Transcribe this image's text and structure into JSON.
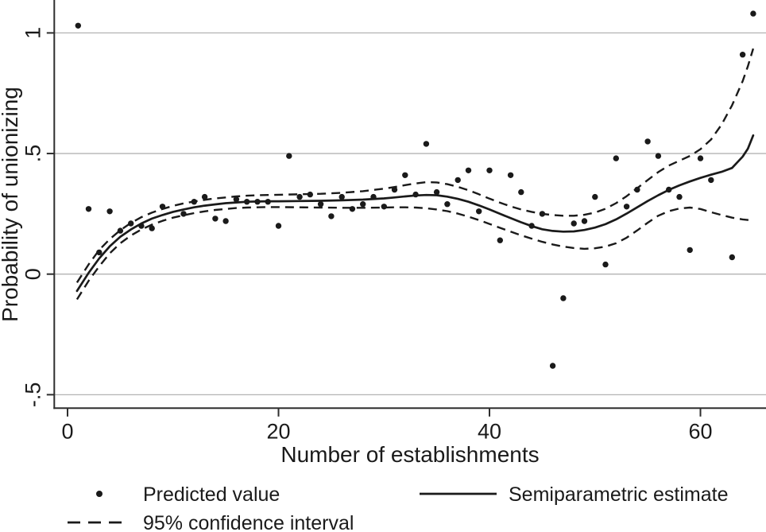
{
  "figure": {
    "background": "#ffffff",
    "text_color": "#1a1a1a",
    "grid_color": "#b3b3b3",
    "axis_color": "#2e2e2e",
    "series_color": "#1a1a1a"
  },
  "chart_data": {
    "type": "scatter",
    "title": "",
    "xlabel": "Number of establishments",
    "ylabel": "Probability of unionizing",
    "xlim": [
      -1.3,
      66.2
    ],
    "ylim": [
      -0.555,
      1.135
    ],
    "grid": "horizontal-only",
    "legend_position": "bottom",
    "xticks": [
      0,
      20,
      40,
      60
    ],
    "xtick_labels": [
      "0",
      "20",
      "40",
      "60"
    ],
    "yticks": [
      -0.5,
      0,
      0.5,
      1
    ],
    "ytick_labels": [
      "-.5",
      "0",
      ".5",
      "1"
    ],
    "series": [
      {
        "name": "Predicted value",
        "type": "scatter",
        "marker": "dot",
        "points": [
          [
            1,
            1.03
          ],
          [
            2,
            0.27
          ],
          [
            3,
            0.09
          ],
          [
            4,
            0.26
          ],
          [
            5,
            0.18
          ],
          [
            6,
            0.21
          ],
          [
            7,
            0.2
          ],
          [
            8,
            0.19
          ],
          [
            9,
            0.28
          ],
          [
            11,
            0.25
          ],
          [
            12,
            0.3
          ],
          [
            13,
            0.32
          ],
          [
            14,
            0.23
          ],
          [
            15,
            0.22
          ],
          [
            16,
            0.31
          ],
          [
            17,
            0.3
          ],
          [
            18,
            0.3
          ],
          [
            19,
            0.3
          ],
          [
            20,
            0.2
          ],
          [
            21,
            0.49
          ],
          [
            22,
            0.32
          ],
          [
            23,
            0.33
          ],
          [
            24,
            0.29
          ],
          [
            25,
            0.24
          ],
          [
            26,
            0.32
          ],
          [
            27,
            0.27
          ],
          [
            28,
            0.29
          ],
          [
            29,
            0.32
          ],
          [
            30,
            0.28
          ],
          [
            31,
            0.35
          ],
          [
            32,
            0.41
          ],
          [
            33,
            0.33
          ],
          [
            34,
            0.54
          ],
          [
            35,
            0.34
          ],
          [
            36,
            0.29
          ],
          [
            37,
            0.39
          ],
          [
            38,
            0.43
          ],
          [
            39,
            0.26
          ],
          [
            40,
            0.43
          ],
          [
            41,
            0.14
          ],
          [
            42,
            0.41
          ],
          [
            43,
            0.34
          ],
          [
            44,
            0.2
          ],
          [
            45,
            0.25
          ],
          [
            46,
            -0.38
          ],
          [
            47,
            -0.1
          ],
          [
            48,
            0.21
          ],
          [
            49,
            0.22
          ],
          [
            50,
            0.32
          ],
          [
            51,
            0.04
          ],
          [
            52,
            0.48
          ],
          [
            53,
            0.28
          ],
          [
            54,
            0.35
          ],
          [
            55,
            0.55
          ],
          [
            56,
            0.49
          ],
          [
            57,
            0.35
          ],
          [
            58,
            0.32
          ],
          [
            59,
            0.1
          ],
          [
            60,
            0.48
          ],
          [
            61,
            0.39
          ],
          [
            63,
            0.07
          ],
          [
            64,
            0.91
          ],
          [
            65,
            1.08
          ]
        ]
      },
      {
        "name": "Semiparametric estimate",
        "type": "line",
        "line_style": "solid",
        "points": [
          [
            0.9,
            -0.07
          ],
          [
            2,
            0.005
          ],
          [
            3,
            0.065
          ],
          [
            4,
            0.115
          ],
          [
            5,
            0.155
          ],
          [
            6,
            0.185
          ],
          [
            7,
            0.21
          ],
          [
            8,
            0.23
          ],
          [
            9,
            0.245
          ],
          [
            10,
            0.258
          ],
          [
            11,
            0.268
          ],
          [
            12,
            0.277
          ],
          [
            13,
            0.284
          ],
          [
            14,
            0.289
          ],
          [
            15,
            0.294
          ],
          [
            16,
            0.297
          ],
          [
            17,
            0.3
          ],
          [
            18,
            0.301
          ],
          [
            19,
            0.302
          ],
          [
            20,
            0.302
          ],
          [
            22,
            0.303
          ],
          [
            24,
            0.304
          ],
          [
            26,
            0.306
          ],
          [
            28,
            0.309
          ],
          [
            30,
            0.314
          ],
          [
            31,
            0.318
          ],
          [
            32,
            0.322
          ],
          [
            33,
            0.326
          ],
          [
            34,
            0.328
          ],
          [
            35,
            0.327
          ],
          [
            36,
            0.321
          ],
          [
            37,
            0.312
          ],
          [
            38,
            0.3
          ],
          [
            39,
            0.285
          ],
          [
            40,
            0.268
          ],
          [
            41,
            0.25
          ],
          [
            42,
            0.232
          ],
          [
            43,
            0.215
          ],
          [
            44,
            0.199
          ],
          [
            45,
            0.186
          ],
          [
            46,
            0.179
          ],
          [
            47,
            0.176
          ],
          [
            48,
            0.177
          ],
          [
            49,
            0.183
          ],
          [
            50,
            0.193
          ],
          [
            51,
            0.207
          ],
          [
            52,
            0.227
          ],
          [
            53,
            0.251
          ],
          [
            54,
            0.277
          ],
          [
            55,
            0.303
          ],
          [
            56,
            0.327
          ],
          [
            57,
            0.349
          ],
          [
            58,
            0.368
          ],
          [
            59,
            0.384
          ],
          [
            60,
            0.399
          ],
          [
            61,
            0.412
          ],
          [
            62,
            0.424
          ],
          [
            63,
            0.44
          ],
          [
            64,
            0.487
          ],
          [
            64.5,
            0.52
          ],
          [
            65,
            0.575
          ]
        ]
      },
      {
        "name": "95% confidence interval",
        "type": "band-lines",
        "line_style": "dashed",
        "upper": [
          [
            0.9,
            -0.035
          ],
          [
            2,
            0.04
          ],
          [
            3,
            0.1
          ],
          [
            4,
            0.145
          ],
          [
            5,
            0.182
          ],
          [
            6,
            0.212
          ],
          [
            7,
            0.236
          ],
          [
            8,
            0.255
          ],
          [
            9,
            0.27
          ],
          [
            10,
            0.283
          ],
          [
            11,
            0.293
          ],
          [
            12,
            0.301
          ],
          [
            13,
            0.308
          ],
          [
            14,
            0.314
          ],
          [
            15,
            0.318
          ],
          [
            16,
            0.322
          ],
          [
            17,
            0.325
          ],
          [
            18,
            0.327
          ],
          [
            19,
            0.328
          ],
          [
            20,
            0.329
          ],
          [
            22,
            0.331
          ],
          [
            24,
            0.333
          ],
          [
            26,
            0.337
          ],
          [
            28,
            0.344
          ],
          [
            30,
            0.354
          ],
          [
            31,
            0.361
          ],
          [
            32,
            0.369
          ],
          [
            33,
            0.376
          ],
          [
            34,
            0.381
          ],
          [
            35,
            0.38
          ],
          [
            36,
            0.373
          ],
          [
            37,
            0.362
          ],
          [
            38,
            0.348
          ],
          [
            39,
            0.331
          ],
          [
            40,
            0.313
          ],
          [
            41,
            0.296
          ],
          [
            42,
            0.281
          ],
          [
            43,
            0.268
          ],
          [
            44,
            0.258
          ],
          [
            45,
            0.25
          ],
          [
            46,
            0.245
          ],
          [
            47,
            0.242
          ],
          [
            48,
            0.242
          ],
          [
            49,
            0.246
          ],
          [
            50,
            0.255
          ],
          [
            51,
            0.271
          ],
          [
            52,
            0.294
          ],
          [
            53,
            0.323
          ],
          [
            54,
            0.356
          ],
          [
            55,
            0.39
          ],
          [
            56,
            0.423
          ],
          [
            57,
            0.45
          ],
          [
            58,
            0.47
          ],
          [
            59,
            0.49
          ],
          [
            60,
            0.518
          ],
          [
            61,
            0.558
          ],
          [
            62,
            0.62
          ],
          [
            63,
            0.7
          ],
          [
            64,
            0.8
          ],
          [
            64.5,
            0.862
          ],
          [
            65,
            0.935
          ]
        ],
        "lower": [
          [
            0.9,
            -0.105
          ],
          [
            2,
            -0.028
          ],
          [
            3,
            0.032
          ],
          [
            4,
            0.086
          ],
          [
            5,
            0.128
          ],
          [
            6,
            0.16
          ],
          [
            7,
            0.185
          ],
          [
            8,
            0.205
          ],
          [
            9,
            0.221
          ],
          [
            10,
            0.234
          ],
          [
            11,
            0.244
          ],
          [
            12,
            0.253
          ],
          [
            13,
            0.26
          ],
          [
            14,
            0.266
          ],
          [
            15,
            0.27
          ],
          [
            16,
            0.274
          ],
          [
            17,
            0.276
          ],
          [
            18,
            0.277
          ],
          [
            19,
            0.278
          ],
          [
            20,
            0.278
          ],
          [
            22,
            0.277
          ],
          [
            24,
            0.276
          ],
          [
            26,
            0.275
          ],
          [
            28,
            0.275
          ],
          [
            30,
            0.276
          ],
          [
            31,
            0.277
          ],
          [
            32,
            0.277
          ],
          [
            33,
            0.276
          ],
          [
            34,
            0.273
          ],
          [
            35,
            0.268
          ],
          [
            36,
            0.261
          ],
          [
            37,
            0.251
          ],
          [
            38,
            0.238
          ],
          [
            39,
            0.224
          ],
          [
            40,
            0.208
          ],
          [
            41,
            0.192
          ],
          [
            42,
            0.176
          ],
          [
            43,
            0.161
          ],
          [
            44,
            0.147
          ],
          [
            45,
            0.134
          ],
          [
            46,
            0.123
          ],
          [
            47,
            0.114
          ],
          [
            48,
            0.108
          ],
          [
            49,
            0.105
          ],
          [
            50,
            0.107
          ],
          [
            51,
            0.114
          ],
          [
            52,
            0.128
          ],
          [
            53,
            0.151
          ],
          [
            54,
            0.181
          ],
          [
            55,
            0.213
          ],
          [
            56,
            0.242
          ],
          [
            57,
            0.261
          ],
          [
            58,
            0.272
          ],
          [
            59,
            0.276
          ],
          [
            60,
            0.27
          ],
          [
            61,
            0.257
          ],
          [
            62,
            0.245
          ],
          [
            63,
            0.234
          ],
          [
            64,
            0.227
          ],
          [
            65,
            0.222
          ]
        ]
      }
    ],
    "legend": [
      {
        "label": "Predicted value",
        "swatch": "dot"
      },
      {
        "label": "Semiparametric estimate",
        "swatch": "solid-line"
      },
      {
        "label": "95% confidence interval",
        "swatch": "dashed-line"
      }
    ]
  }
}
